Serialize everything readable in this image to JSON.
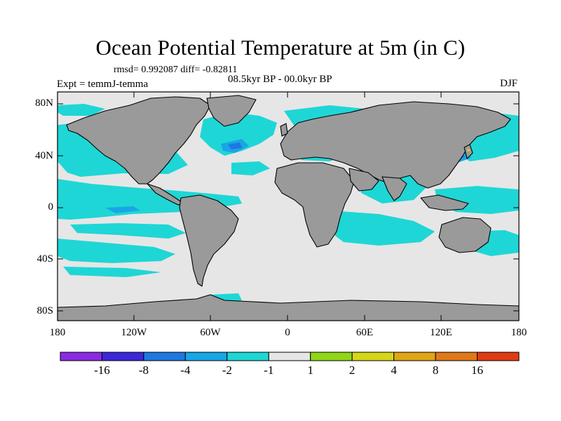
{
  "title": "Ocean Potential Temperature at 5m (in C)",
  "stats": "rmsd= 0.992087 diff= -0.82811",
  "experiment": "Expt = temmJ-temma",
  "period": "08.5kyr BP - 00.0kyr BP",
  "season": "DJF",
  "lat_ticks": [
    "80N",
    "40N",
    "0",
    "40S",
    "80S"
  ],
  "lon_ticks": [
    "180",
    "120W",
    "60W",
    "0",
    "60E",
    "120E",
    "180"
  ],
  "colorbar": {
    "colors": [
      "#8a2be2",
      "#3c28d8",
      "#1e78e0",
      "#19a6e6",
      "#1fd6d6",
      "#e6e6e6",
      "#8fd619",
      "#d6d619",
      "#e0a514",
      "#e07819",
      "#e03c14"
    ],
    "labels": [
      "-16",
      "-8",
      "-4",
      "-2",
      "-1",
      "1",
      "2",
      "4",
      "8",
      "16"
    ]
  },
  "map_colors": {
    "ocean_neutral": "#e6e6e6",
    "land": "#9a9a9a",
    "cool_light": "#1fd6d6",
    "cool_mid": "#19a6e6",
    "cool_strong": "#1e78e0",
    "warm_light": "#d6d619"
  }
}
